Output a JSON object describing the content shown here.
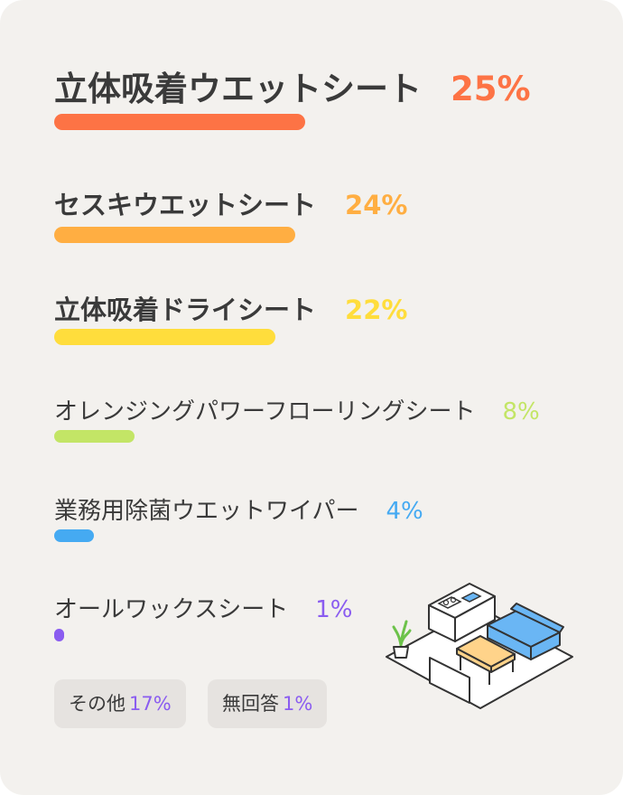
{
  "chart_data": {
    "type": "bar",
    "orientation": "horizontal",
    "categories": [
      "立体吸着ウエットシート",
      "セスキウエットシート",
      "立体吸着ドライシート",
      "オレンジングパワーフローリングシート",
      "業務用除菌ウエットワイパー",
      "オールワックスシート"
    ],
    "values": [
      25,
      24,
      22,
      8,
      4,
      1
    ],
    "value_labels": [
      "25%",
      "24%",
      "22%",
      "8%",
      "4%",
      "1%"
    ],
    "colors": [
      "#fd7345",
      "#ffae42",
      "#ffdd3c",
      "#c3e566",
      "#45aaf2",
      "#8a5cf0"
    ],
    "value_max": 25,
    "grid": false,
    "legend": "none",
    "others": [
      {
        "label": "その他",
        "value": "17%"
      },
      {
        "label": "無回答",
        "value": "1%"
      }
    ]
  },
  "illustration": {
    "icon": "living-room-illustration"
  }
}
